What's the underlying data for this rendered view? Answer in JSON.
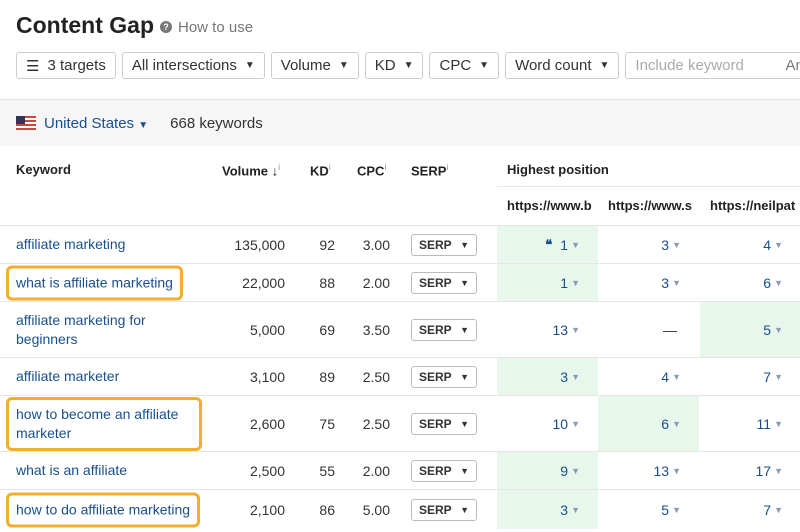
{
  "header": {
    "title": "Content Gap",
    "help_icon": "question-circle-icon",
    "how_to_use": "How to use"
  },
  "filters": {
    "targets": "3 targets",
    "intersections": "All intersections",
    "volume": "Volume",
    "kd": "KD",
    "cpc": "CPC",
    "word_count": "Word count",
    "include_placeholder": "Include keyword",
    "include_mode": "Any"
  },
  "location": {
    "country": "United States",
    "keyword_count": "668 keywords"
  },
  "table": {
    "headers": {
      "keyword": "Keyword",
      "volume": "Volume",
      "kd": "KD",
      "cpc": "CPC",
      "serp": "SERP",
      "highest_position": "Highest position",
      "info": "i",
      "sort_arrow": "↓"
    },
    "targets": [
      "https://www.b",
      "https://www.s",
      "https://neilpat"
    ],
    "highlight_color": "#e7f7ec",
    "outline_color": "#f3ad2f",
    "rows": [
      {
        "keyword": "affiliate marketing",
        "volume": "135,000",
        "kd": "92",
        "cpc": "3.00",
        "serp": "SERP",
        "positions": [
          "1",
          "3",
          "4"
        ],
        "best": 0,
        "featured_snippet": true,
        "outlined": false
      },
      {
        "keyword": "what is affiliate marketing",
        "volume": "22,000",
        "kd": "88",
        "cpc": "2.00",
        "serp": "SERP",
        "positions": [
          "1",
          "3",
          "6"
        ],
        "best": 0,
        "outlined": true
      },
      {
        "keyword": "affiliate marketing for beginners",
        "volume": "5,000",
        "kd": "69",
        "cpc": "3.50",
        "serp": "SERP",
        "positions": [
          "13",
          "—",
          "5"
        ],
        "best": 2,
        "outlined": false
      },
      {
        "keyword": "affiliate marketer",
        "volume": "3,100",
        "kd": "89",
        "cpc": "2.50",
        "serp": "SERP",
        "positions": [
          "3",
          "4",
          "7"
        ],
        "best": 0,
        "outlined": false
      },
      {
        "keyword": "how to become an affiliate marketer",
        "volume": "2,600",
        "kd": "75",
        "cpc": "2.50",
        "serp": "SERP",
        "positions": [
          "10",
          "6",
          "11"
        ],
        "best": 1,
        "outlined": true
      },
      {
        "keyword": "what is an affiliate",
        "volume": "2,500",
        "kd": "55",
        "cpc": "2.00",
        "serp": "SERP",
        "positions": [
          "9",
          "13",
          "17"
        ],
        "best": 0,
        "outlined": false
      },
      {
        "keyword": "how to do affiliate marketing",
        "volume": "2,100",
        "kd": "86",
        "cpc": "5.00",
        "serp": "SERP",
        "positions": [
          "3",
          "5",
          "7"
        ],
        "best": 0,
        "outlined": true
      }
    ]
  }
}
